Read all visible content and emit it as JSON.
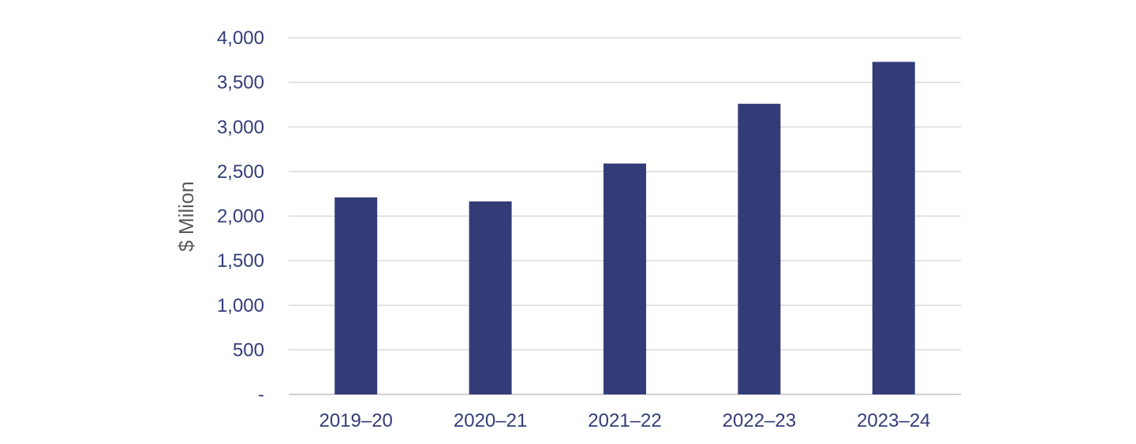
{
  "chart_data": {
    "type": "bar",
    "categories": [
      "2019–20",
      "2020–21",
      "2021–22",
      "2022–23",
      "2023–24"
    ],
    "values": [
      2210,
      2165,
      2590,
      3260,
      3730
    ],
    "title": "",
    "xlabel": "",
    "ylabel": "$ Milion",
    "ylim": [
      0,
      4000
    ],
    "yticks": [
      0,
      500,
      1000,
      1500,
      2000,
      2500,
      3000,
      3500,
      4000
    ],
    "ytick_labels": [
      "-",
      "500",
      "1,000",
      "1,500",
      "2,000",
      "2,500",
      "3,000",
      "3,500",
      "4,000"
    ],
    "grid": true,
    "legend": "none",
    "colors": {
      "bar": "#343C78",
      "tick_text": "#343C78",
      "axis_title": "#5A5A5A",
      "grid": "#D9D9D9"
    }
  }
}
